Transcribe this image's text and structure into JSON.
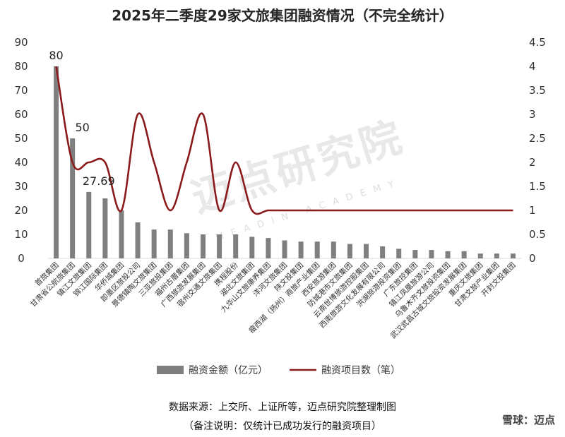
{
  "title": "2025年二季度29家文旅集团融资情况（不完全统计）",
  "source": "数据来源：上交所、上证所等，迈点研究院整理制图",
  "note": "（备注说明：仅统计已成功发行的融资项目）",
  "watermark": "迈点研究院",
  "watermark_sub": "MEADIN ACADEMY",
  "xueqiu_badge": "雪球：迈点",
  "chart_data": {
    "type": "bar",
    "title": "2025年二季度29家文旅集团融资情况（不完全统计）",
    "categories": [
      "首旅集团",
      "甘肃省公航旅集团",
      "镇江文旅集团",
      "锦江国际集团",
      "华侨城集团",
      "即墨区旅投公司",
      "景德镇陶文旅集团",
      "三亚旅投集团",
      "福州古厝集团",
      "广西旅游发展集团",
      "宿州交通文旅集团",
      "携程股份",
      "湖北文旅集团",
      "九华山文旅康养集团",
      "洋河文旅集团",
      "陕文投集团",
      "瘦西湖（扬州）商旅产业集团",
      "西安旅游集团",
      "防城港市文旅集团",
      "云南世博旅游控股集团",
      "西南旅游文化发展有限公司",
      "洪湖旅游投资集团",
      "广东旅控集团",
      "镇江凤凰旅游公司",
      "乌鲁木齐文旅投资集团",
      "武汉武昌古城文旅投资发展集团",
      "重庆文旅集团",
      "甘肃文旅产业集团",
      "开封文投集团"
    ],
    "series": [
      {
        "name": "融资金额（亿元）",
        "type": "bar",
        "axis": "left",
        "color": "#7f7f7f",
        "values": [
          80,
          50,
          27.69,
          25,
          20,
          15,
          12,
          12,
          10.5,
          10,
          10,
          10,
          9,
          8.5,
          7.5,
          7,
          7,
          7,
          6,
          6,
          5,
          4,
          3.5,
          3.5,
          3,
          3,
          2,
          2,
          2
        ]
      },
      {
        "name": "融资项目数（笔）",
        "type": "line",
        "axis": "right",
        "color": "#8b1a1a",
        "values": [
          4,
          2,
          2,
          2,
          1,
          3,
          2,
          1,
          2,
          3,
          1,
          2,
          1,
          1,
          1,
          1,
          1,
          1,
          1,
          1,
          1,
          1,
          1,
          1,
          1,
          1,
          1,
          1,
          1
        ]
      }
    ],
    "data_labels": [
      {
        "index": 0,
        "text": "80"
      },
      {
        "index": 1,
        "text": "50"
      },
      {
        "index": 2,
        "text": "27.69"
      }
    ],
    "y_left": {
      "min": 0,
      "max": 90,
      "ticks": [
        "0",
        "10",
        "20",
        "30",
        "40",
        "50",
        "60",
        "70",
        "80",
        "90"
      ]
    },
    "y_right": {
      "min": 0,
      "max": 4.5,
      "ticks": [
        "0",
        "0.5",
        "1",
        "1.5",
        "2",
        "2.5",
        "3",
        "3.5",
        "4",
        "4.5"
      ]
    },
    "legend_position": "bottom",
    "grid": false
  }
}
